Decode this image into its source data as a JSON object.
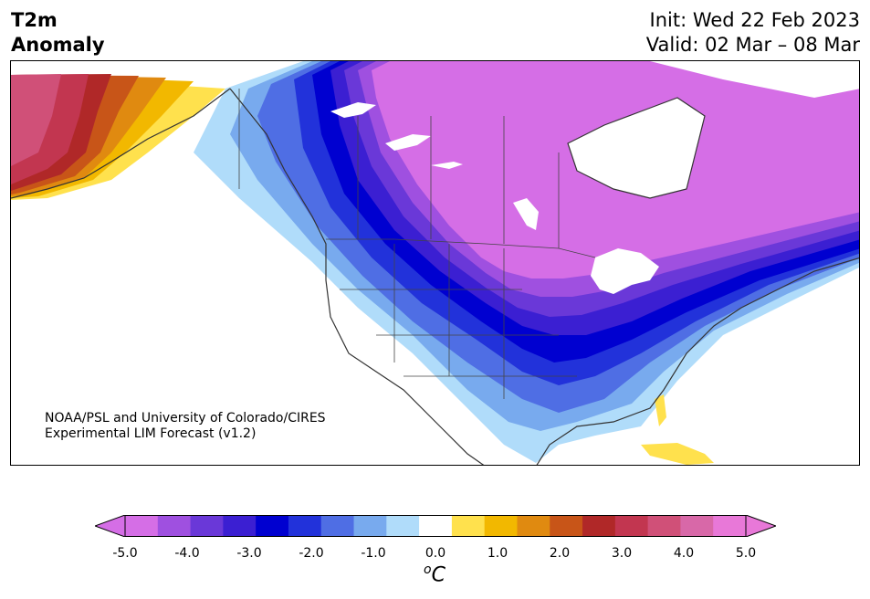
{
  "header": {
    "title_line1": "T2m",
    "title_line2": "Anomaly",
    "init": "Init: Wed 22 Feb 2023",
    "valid": "Valid: 02 Mar – 08 Mar"
  },
  "credit": {
    "line1": "NOAA/PSL and University of Colorado/CIRES",
    "line2": "Experimental LIM Forecast (v1.2)"
  },
  "colorbar": {
    "unit_base": "C",
    "unit_prefix": "o",
    "ticks": [
      "-5.0",
      "-4.0",
      "-3.0",
      "-2.0",
      "-1.0",
      "0.0",
      "1.0",
      "2.0",
      "3.0",
      "4.0",
      "5.0"
    ],
    "colors": [
      "#d56ee6",
      "#9f50e0",
      "#6a38d8",
      "#3b1fd2",
      "#0000d0",
      "#2232da",
      "#4f6ee4",
      "#78aaee",
      "#b0dcfa",
      "#ffffff",
      "#ffe14d",
      "#f2b800",
      "#e08a10",
      "#c85518",
      "#b02828",
      "#c23650",
      "#d05078",
      "#d868a8",
      "#e878d8"
    ],
    "under_color": "#d56ee6",
    "over_color": "#e878d8"
  }
}
